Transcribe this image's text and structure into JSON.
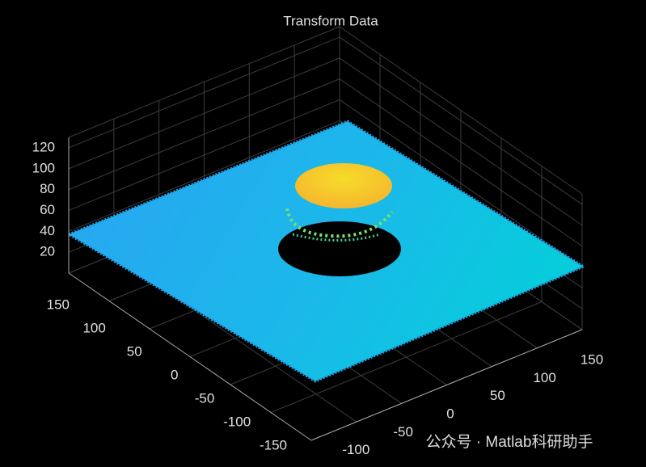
{
  "chart_data": {
    "type": "scatter3",
    "title": "Transform Data",
    "xlim": [
      -150,
      150
    ],
    "xticks": [
      -150,
      -100,
      -50,
      0,
      50,
      100,
      150
    ],
    "ylim": [
      -150,
      150
    ],
    "yticks": [
      -100,
      -50,
      0,
      50,
      100,
      150
    ],
    "zlim": [
      0,
      130
    ],
    "zticks": [
      20,
      40,
      60,
      80,
      100,
      120
    ],
    "grid": true
  },
  "watermark": "公众号 · Matlab科研助手"
}
